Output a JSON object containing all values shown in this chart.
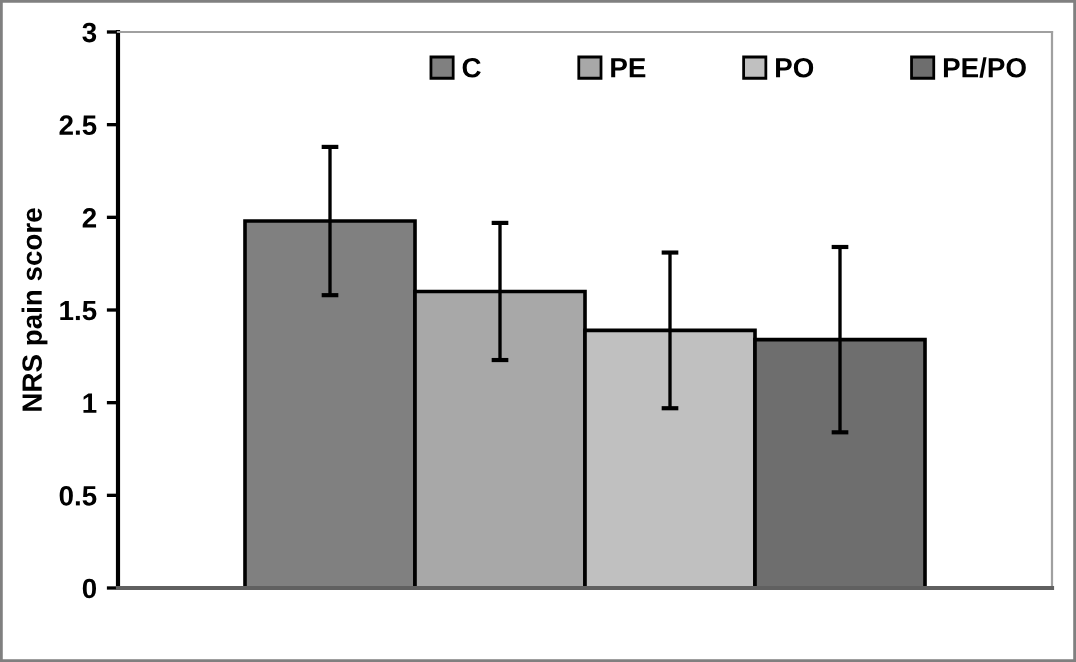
{
  "chart_data": {
    "type": "bar",
    "ylabel": "NRS pain score",
    "categories": [
      null
    ],
    "series": [
      {
        "name": "C",
        "color": "#808080",
        "values": [
          1.98
        ],
        "errors": [
          0.4
        ]
      },
      {
        "name": "PE",
        "color": "#a8a8a8",
        "values": [
          1.6
        ],
        "errors": [
          0.37
        ]
      },
      {
        "name": "PO",
        "color": "#c0c0c0",
        "values": [
          1.39
        ],
        "errors": [
          0.42
        ]
      },
      {
        "name": "PE/PO",
        "color": "#6e6e6e",
        "values": [
          1.34
        ],
        "errors": [
          0.5
        ]
      }
    ],
    "ylim": [
      0,
      3
    ],
    "yticks": [
      0,
      0.5,
      1,
      1.5,
      2,
      2.5,
      3
    ],
    "grid": false,
    "legend": "top right"
  }
}
